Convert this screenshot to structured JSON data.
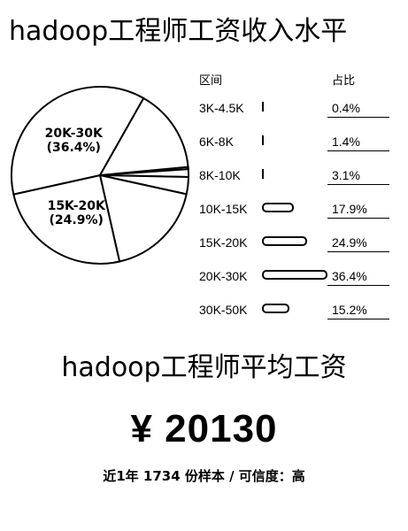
{
  "header": {
    "title": "hadoop工程师工资收入水平"
  },
  "table": {
    "col_range": "区间",
    "col_pct": "占比"
  },
  "chart_data": {
    "type": "pie",
    "title": "",
    "slices": [
      {
        "label": "3K-4.5K",
        "value": 0.4,
        "pct_label": "0.4%",
        "pie_label": ""
      },
      {
        "label": "6K-8K",
        "value": 1.4,
        "pct_label": "1.4%",
        "pie_label": ""
      },
      {
        "label": "8K-10K",
        "value": 3.1,
        "pct_label": "3.1%",
        "pie_label": ""
      },
      {
        "label": "10K-15K",
        "value": 17.9,
        "pct_label": "17.9%",
        "pie_label": ""
      },
      {
        "label": "15K-20K",
        "value": 24.9,
        "pct_label": "24.9%",
        "pie_label": "15K-20K\n(24.9%)"
      },
      {
        "label": "20K-30K",
        "value": 36.4,
        "pct_label": "36.4%",
        "pie_label": "20K-30K\n(36.4%)"
      },
      {
        "label": "30K-50K",
        "value": 15.2,
        "pct_label": "15.2%",
        "pie_label": ""
      }
    ]
  },
  "average": {
    "title": "hadoop工程师平均工资",
    "currency": "¥",
    "amount": "20130",
    "sample_note": "近1年 1734 份样本 / 可信度：高"
  }
}
